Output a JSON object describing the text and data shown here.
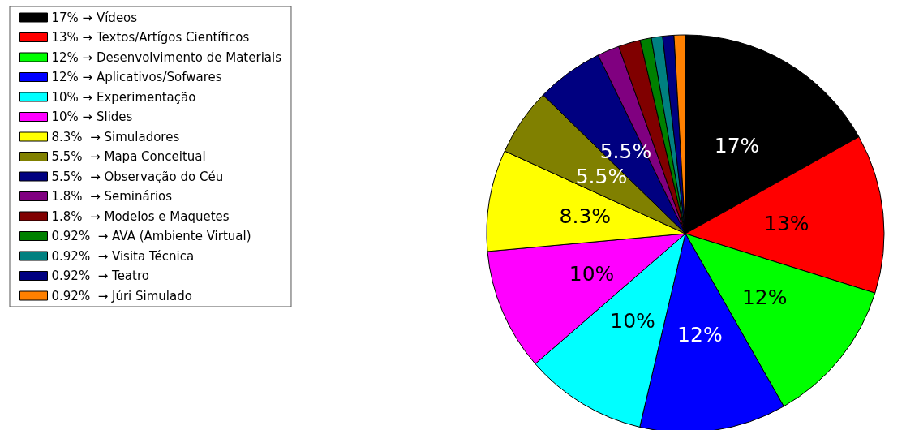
{
  "chart_data": {
    "type": "pie",
    "legend": "top left",
    "categories": [
      "17% → Vídeos",
      "13% → Textos/Artígos Científicos",
      "12% → Desenvolvimento de Materiais",
      "12% → Aplicativos/Sofwares",
      "10% → Experimentação",
      "10% → Slides",
      "8.3%  → Simuladores",
      "5.5%  → Mapa Conceitual",
      "5.5%  → Observação do Céu",
      "1.8%  → Seminários",
      "1.8%  → Modelos e Maquetes",
      "0.92%  → AVA (Ambiente Virtual)",
      "0.92%  → Visita Técnica",
      "0.92%  → Teatro",
      "0.92%  → Júri Simulado"
    ],
    "values": [
      17,
      13,
      12,
      12,
      10,
      10,
      8.3,
      5.5,
      5.5,
      1.8,
      1.8,
      0.92,
      0.92,
      0.92,
      0.92
    ],
    "colors": [
      "#000000",
      "#ff0000",
      "#00ff00",
      "#0000ff",
      "#00ffff",
      "#ff00ff",
      "#ffff00",
      "#808000",
      "#000080",
      "#800080",
      "#800000",
      "#008000",
      "#008080",
      "#000080",
      "#ff8000"
    ],
    "value_labels": [
      "17%",
      "13%",
      "12%",
      "12%",
      "10%",
      "10%",
      "8.3%",
      "5.5%",
      "5.5%",
      null,
      null,
      null,
      null,
      null,
      null
    ]
  }
}
